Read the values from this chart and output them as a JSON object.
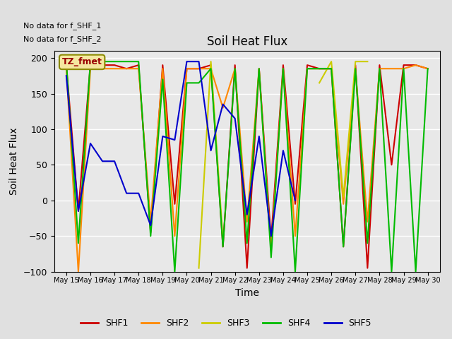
{
  "title": "Soil Heat Flux",
  "ylabel": "Soil Heat Flux",
  "xlabel": "Time",
  "ylim": [
    -100,
    210
  ],
  "note1": "No data for f_SHF_1",
  "note2": "No data for f_SHF_2",
  "legend_label": "TZ_fmet",
  "x_labels": [
    "May 15",
    "May 16",
    "May 17",
    "May 18",
    "May 19",
    "May 20",
    "May 21",
    "May 22",
    "May 23",
    "May 24",
    "May 25",
    "May 26",
    "May 27",
    "May 28",
    "May 29",
    "May 30"
  ],
  "SHF1_color": "#cc0000",
  "SHF2_color": "#ff8800",
  "SHF3_color": "#cccc00",
  "SHF4_color": "#00bb00",
  "SHF5_color": "#0000cc",
  "bg_color": "#e8e8e8",
  "grid_color": "#ffffff",
  "fig_bg": "#e0e0e0",
  "x": [
    0,
    0.5,
    1,
    1.5,
    2,
    2.5,
    3,
    3.5,
    4,
    4.5,
    5,
    5.5,
    6,
    6.5,
    7,
    7.5,
    8,
    8.5,
    9,
    9.5,
    10,
    10.5,
    11,
    11.5,
    12,
    12.5,
    13,
    13.5,
    14,
    14.5,
    15
  ],
  "SHF1": [
    190,
    -15,
    190,
    190,
    190,
    185,
    190,
    -45,
    190,
    -5,
    185,
    185,
    190,
    -65,
    190,
    -95,
    185,
    -55,
    190,
    -5,
    190,
    185,
    185,
    -65,
    190,
    -95,
    190,
    50,
    190,
    190,
    185
  ],
  "SHF2": [
    185,
    -100,
    185,
    185,
    185,
    185,
    185,
    -30,
    185,
    -50,
    185,
    185,
    185,
    130,
    185,
    -30,
    185,
    -70,
    185,
    -50,
    185,
    185,
    185,
    -5,
    185,
    -30,
    185,
    185,
    185,
    190,
    185
  ],
  "SHF3": [
    null,
    null,
    null,
    -60,
    null,
    null,
    null,
    null,
    null,
    null,
    null,
    -95,
    195,
    -55,
    null,
    null,
    null,
    -95,
    null,
    null,
    null,
    165,
    195,
    5,
    195,
    195,
    null,
    null,
    null,
    195,
    null
  ],
  "SHF4": [
    195,
    -60,
    195,
    195,
    195,
    195,
    195,
    -50,
    170,
    -100,
    165,
    165,
    185,
    -65,
    185,
    -60,
    185,
    -80,
    185,
    -100,
    185,
    185,
    185,
    -65,
    185,
    -60,
    185,
    -100,
    185,
    -100,
    185
  ],
  "SHF5": [
    175,
    -15,
    80,
    55,
    55,
    10,
    10,
    -35,
    90,
    85,
    195,
    195,
    70,
    135,
    115,
    -20,
    90,
    -50,
    70,
    0,
    null,
    null,
    null,
    null,
    null,
    null,
    null,
    null,
    null,
    null,
    null
  ]
}
